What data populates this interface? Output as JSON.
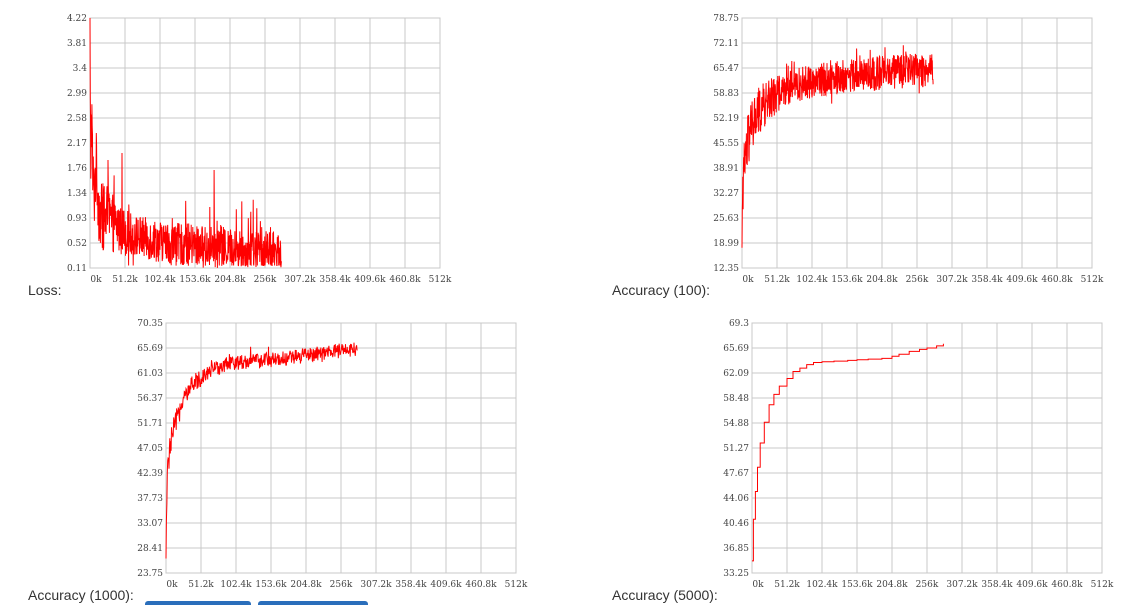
{
  "colors": {
    "series": "#ff0000",
    "grid": "#c8c8c8",
    "accent": "#2a6ebb"
  },
  "chart_data": [
    {
      "id": "loss",
      "type": "line",
      "label": "Loss:",
      "x_ticks": [
        "0k",
        "51.2k",
        "102.4k",
        "153.6k",
        "204.8k",
        "256k",
        "307.2k",
        "358.4k",
        "409.6k",
        "460.8k",
        "512k"
      ],
      "y_ticks": [
        "4.22",
        "3.81",
        "3.4",
        "2.99",
        "2.58",
        "2.17",
        "1.76",
        "1.34",
        "0.93",
        "0.52",
        "0.11"
      ],
      "xlim": [
        0,
        512000
      ],
      "ylim": [
        0.11,
        4.22
      ],
      "grid": true,
      "series": [
        {
          "color": "#ff0000",
          "x": [
            0,
            400,
            1200,
            2500,
            4000,
            6000,
            9000,
            13000,
            18000,
            25000,
            32000,
            40000,
            51200,
            64000,
            80000,
            102400,
            120000,
            140000,
            153600,
            170000,
            190000,
            204800,
            220000,
            240000,
            256000,
            280000
          ],
          "y": [
            4.0,
            2.6,
            1.9,
            2.7,
            1.6,
            1.3,
            1.8,
            1.1,
            0.9,
            1.0,
            0.85,
            0.8,
            0.7,
            0.65,
            0.6,
            0.55,
            0.5,
            0.5,
            0.48,
            0.45,
            0.45,
            0.42,
            0.4,
            0.4,
            0.38,
            0.36
          ]
        }
      ]
    },
    {
      "id": "acc100",
      "type": "line",
      "label": "Accuracy (100):",
      "x_ticks": [
        "0k",
        "51.2k",
        "102.4k",
        "153.6k",
        "204.8k",
        "256k",
        "307.2k",
        "358.4k",
        "409.6k",
        "460.8k",
        "512k"
      ],
      "y_ticks": [
        "78.75",
        "72.11",
        "65.47",
        "58.83",
        "52.19",
        "45.55",
        "38.91",
        "32.27",
        "25.63",
        "18.99",
        "12.35"
      ],
      "xlim": [
        0,
        512000
      ],
      "ylim": [
        12.35,
        78.75
      ],
      "grid": true,
      "series": [
        {
          "color": "#ff0000",
          "x": [
            0,
            1000,
            3000,
            6000,
            10000,
            15000,
            22000,
            30000,
            40000,
            51200,
            64000,
            80000,
            102400,
            120000,
            140000,
            153600,
            170000,
            190000,
            204800,
            220000,
            240000,
            256000,
            280000
          ],
          "y": [
            15,
            30,
            38,
            43,
            47,
            50,
            53,
            55,
            57,
            58.5,
            60,
            61,
            62,
            62.5,
            63,
            63.3,
            63.6,
            64,
            64.2,
            64.4,
            64.6,
            64.8,
            65
          ]
        }
      ]
    },
    {
      "id": "acc1000",
      "type": "line",
      "label": "Accuracy (1000):",
      "x_ticks": [
        "0k",
        "51.2k",
        "102.4k",
        "153.6k",
        "204.8k",
        "256k",
        "307.2k",
        "358.4k",
        "409.6k",
        "460.8k",
        "512k"
      ],
      "y_ticks": [
        "70.35",
        "65.69",
        "61.03",
        "56.37",
        "51.71",
        "47.05",
        "42.39",
        "37.73",
        "33.07",
        "28.41",
        "23.75"
      ],
      "xlim": [
        0,
        512000
      ],
      "ylim": [
        23.75,
        70.35
      ],
      "grid": true,
      "series": [
        {
          "color": "#ff0000",
          "x": [
            0,
            1000,
            3000,
            6000,
            10000,
            15000,
            22000,
            30000,
            40000,
            51200,
            64000,
            80000,
            102400,
            120000,
            140000,
            153600,
            170000,
            190000,
            204800,
            220000,
            240000,
            256000,
            280000
          ],
          "y": [
            25,
            38,
            44,
            47,
            50,
            52,
            55,
            57,
            59,
            60.2,
            61.5,
            62.3,
            63,
            63.2,
            63.4,
            63.5,
            63.7,
            64,
            64.3,
            64.6,
            64.9,
            65.2,
            65.5
          ]
        }
      ]
    },
    {
      "id": "acc5000",
      "type": "line",
      "label": "Accuracy (5000):",
      "x_ticks": [
        "0k",
        "51.2k",
        "102.4k",
        "153.6k",
        "204.8k",
        "256k",
        "307.2k",
        "358.4k",
        "409.6k",
        "460.8k",
        "512k"
      ],
      "y_ticks": [
        "69.3",
        "65.69",
        "62.09",
        "58.48",
        "54.88",
        "51.27",
        "47.67",
        "44.06",
        "40.46",
        "36.85",
        "33.25"
      ],
      "xlim": [
        0,
        512000
      ],
      "ylim": [
        33.25,
        69.3
      ],
      "grid": true,
      "series": [
        {
          "color": "#ff0000",
          "x": [
            0,
            2000,
            5000,
            8000,
            12000,
            18000,
            25000,
            32000,
            40000,
            51200,
            60000,
            70000,
            80000,
            90000,
            102400,
            120000,
            140000,
            153600,
            170000,
            190000,
            204800,
            215000,
            230000,
            245000,
            256000,
            270000,
            280000
          ],
          "y": [
            35,
            41,
            45,
            48.5,
            52,
            55,
            57.5,
            59,
            60.2,
            61.3,
            62.3,
            62.8,
            63.3,
            63.6,
            63.7,
            63.8,
            63.9,
            64,
            64.1,
            64.2,
            64.5,
            64.8,
            65.2,
            65.5,
            65.7,
            66,
            66.3
          ]
        }
      ]
    }
  ]
}
